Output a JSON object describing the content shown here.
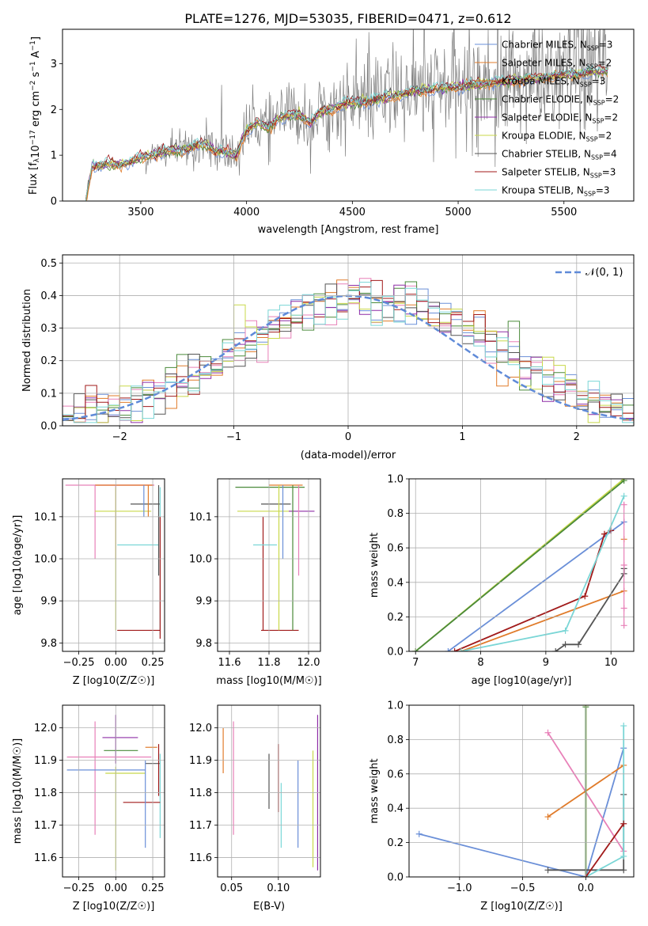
{
  "title": "PLATE=1276, MJD=53035, FIBERID=0471, z=0.612",
  "colors": {
    "Chabrier MILES": "#6a8fd8",
    "Salpeter MILES": "#e07b2a",
    "Kroupa MILES": "#e07b2a",
    "Chabrier ELODIE": "#4a8a3a",
    "Salpeter ELODIE": "#8e2da6",
    "Kroupa ELODIE": "#c8d84a",
    "Chabrier STELIB": "#555555",
    "Salpeter STELIB": "#a11a1a",
    "Kroupa STELIB": "#7ad6d6",
    "pink": "#e880b8",
    "gaussian": "#5f8ad8",
    "spectrum": "#7f7f7f"
  },
  "chart_data": [
    {
      "id": "spectrum",
      "type": "line",
      "xlabel": "wavelength [Angstrom, rest frame]",
      "ylabel": "Flux [f_λ10^-17 erg cm^-2 s^-1 A^-1]",
      "xlim": [
        3130,
        5830
      ],
      "ylim": [
        0,
        3.75
      ],
      "xticks": [
        3500,
        4000,
        4500,
        5000,
        5500
      ],
      "yticks": [
        0,
        1,
        2,
        3
      ],
      "legend_position": "top-right",
      "legend": [
        {
          "label": "Chabrier MILES",
          "nssp": "3",
          "color": "#6a8fd8"
        },
        {
          "label": "Salpeter MILES",
          "nssp": "2",
          "color": "#e07b2a"
        },
        {
          "label": "Kroupa MILES",
          "nssp": "3",
          "color": "#e07b2a"
        },
        {
          "label": "Chabrier ELODIE",
          "nssp": "2",
          "color": "#4a8a3a"
        },
        {
          "label": "Salpeter ELODIE",
          "nssp": "2",
          "color": "#8e2da6"
        },
        {
          "label": "Kroupa ELODIE",
          "nssp": "2",
          "color": "#c8d84a"
        },
        {
          "label": "Chabrier STELIB",
          "nssp": "4",
          "color": "#555555"
        },
        {
          "label": "Salpeter STELIB",
          "nssp": "3",
          "color": "#a11a1a"
        },
        {
          "label": "Kroupa STELIB",
          "nssp": "3",
          "color": "#7ad6d6"
        }
      ],
      "continuum": [
        [
          3240,
          0
        ],
        [
          3270,
          0.78
        ],
        [
          3300,
          0.75
        ],
        [
          3350,
          0.82
        ],
        [
          3400,
          0.8
        ],
        [
          3450,
          0.85
        ],
        [
          3500,
          0.95
        ],
        [
          3550,
          1.0
        ],
        [
          3600,
          1.05
        ],
        [
          3650,
          1.1
        ],
        [
          3700,
          1.12
        ],
        [
          3750,
          1.18
        ],
        [
          3800,
          1.25
        ],
        [
          3850,
          1.1
        ],
        [
          3900,
          1.05
        ],
        [
          3950,
          1.0
        ],
        [
          4000,
          1.55
        ],
        [
          4050,
          1.7
        ],
        [
          4100,
          1.6
        ],
        [
          4150,
          1.8
        ],
        [
          4200,
          1.85
        ],
        [
          4250,
          1.9
        ],
        [
          4300,
          1.7
        ],
        [
          4350,
          1.95
        ],
        [
          4400,
          2.0
        ],
        [
          4450,
          2.1
        ],
        [
          4500,
          2.15
        ],
        [
          4600,
          2.2
        ],
        [
          4700,
          2.3
        ],
        [
          4800,
          2.4
        ],
        [
          4900,
          2.45
        ],
        [
          5000,
          2.5
        ],
        [
          5100,
          2.55
        ],
        [
          5200,
          2.6
        ],
        [
          5300,
          2.65
        ],
        [
          5400,
          2.7
        ],
        [
          5500,
          2.75
        ],
        [
          5600,
          2.8
        ],
        [
          5700,
          2.85
        ]
      ],
      "noise_start": 3520
    },
    {
      "id": "residuals",
      "type": "line",
      "xlabel": "(data-model)/error",
      "ylabel": "Normed distribution",
      "xlim": [
        -2.5,
        2.5
      ],
      "ylim": [
        0,
        0.525
      ],
      "xticks": [
        -2,
        -1,
        0,
        1,
        2
      ],
      "yticks": [
        0.0,
        0.1,
        0.2,
        0.3,
        0.4,
        0.5
      ],
      "legend_position": "top-right",
      "legend_label": "𝒩(0, 1)",
      "bin_width": 0.1
    },
    {
      "id": "age-vs-Z",
      "type": "scatter",
      "xlabel": "Z [log10(Z/Z☉)]",
      "ylabel": "age [log10(age/yr)]",
      "xlim": [
        -0.36,
        0.33
      ],
      "ylim": [
        9.78,
        10.19
      ],
      "xticks": [
        -0.25,
        0.0,
        0.25
      ],
      "xticklabels": [
        "−0.25",
        "0.00",
        "0.25"
      ],
      "yticks": [
        9.8,
        9.9,
        10.0,
        10.1
      ],
      "points": [
        {
          "x": 0.1,
          "xlo": -0.34,
          "xhi": 0.26,
          "y": 10.175,
          "color": "#e880b8"
        },
        {
          "x": 0.0,
          "xlo": -0.14,
          "xhi": 0.26,
          "y": 10.175,
          "ylo": 10.0,
          "yhi": 10.175,
          "color": "#e880b8"
        },
        {
          "x": 0.0,
          "xlo": -0.14,
          "xhi": 0.25,
          "y": 10.175,
          "color": "#e07b2a"
        },
        {
          "x": -0.14,
          "y": 10.175,
          "ylo": 10.0,
          "yhi": 10.175,
          "color": "#e880b8"
        },
        {
          "x": 0.0,
          "y": 10.17,
          "ylo": 9.83,
          "yhi": 10.17,
          "color": "#c8d84a"
        },
        {
          "x": 0.03,
          "xlo": -0.14,
          "xhi": 0.24,
          "y": 10.113,
          "color": "#c8d84a"
        },
        {
          "x": 0.22,
          "xlo": 0.1,
          "xhi": 0.3,
          "y": 10.13,
          "color": "#555555"
        },
        {
          "x": 0.19,
          "y": 10.12,
          "ylo": 10.1,
          "yhi": 10.175,
          "color": "#6a8fd8"
        },
        {
          "x": 0.22,
          "y": 10.115,
          "ylo": 10.1,
          "yhi": 10.175,
          "color": "#e07b2a"
        },
        {
          "x": 0.1,
          "xlo": 0.01,
          "xhi": 0.29,
          "y": 10.033,
          "color": "#7ad6d6"
        },
        {
          "x": 0.29,
          "y": 10.02,
          "ylo": 9.96,
          "yhi": 10.175,
          "color": "#555555"
        },
        {
          "x": 0.3,
          "y": 10.0,
          "ylo": 9.82,
          "yhi": 10.17,
          "color": "#7ad6d6"
        },
        {
          "x": 0.3,
          "y": 10.0,
          "ylo": 9.81,
          "yhi": 10.1,
          "color": "#a11a1a"
        },
        {
          "x": 0.18,
          "xlo": 0.01,
          "xhi": 0.3,
          "y": 9.83,
          "color": "#a11a1a"
        }
      ]
    },
    {
      "id": "age-vs-mass",
      "type": "scatter",
      "xlabel": "mass [log10(M/M☉)]",
      "ylabel": "",
      "xlim": [
        11.54,
        12.06
      ],
      "ylim": [
        9.78,
        10.19
      ],
      "xticks": [
        11.6,
        11.8,
        12.0
      ],
      "xticklabels": [
        "11.6",
        "11.8",
        "12.0"
      ],
      "yticks": [
        9.8,
        9.9,
        10.0,
        10.1
      ],
      "points": [
        {
          "x": 11.9,
          "xlo": 11.63,
          "xhi": 11.98,
          "y": 10.17,
          "color": "#4a8a3a"
        },
        {
          "x": 11.93,
          "xlo": 11.8,
          "xhi": 11.97,
          "y": 10.175,
          "color": "#e07b2a"
        },
        {
          "x": 11.9,
          "xlo": 11.64,
          "xhi": 11.93,
          "y": 10.113,
          "color": "#c8d84a"
        },
        {
          "x": 11.97,
          "xlo": 11.9,
          "xhi": 12.03,
          "y": 10.113,
          "color": "#8e2da6"
        },
        {
          "x": 11.84,
          "xlo": 11.76,
          "xhi": 11.91,
          "y": 10.13,
          "color": "#555555"
        },
        {
          "x": 11.87,
          "y": 10.12,
          "ylo": 10.0,
          "yhi": 10.175,
          "color": "#6a8fd8"
        },
        {
          "x": 11.77,
          "y": 10.1,
          "ylo": 9.83,
          "yhi": 10.1,
          "color": "#a11a1a"
        },
        {
          "x": 11.78,
          "xlo": 11.72,
          "xhi": 11.84,
          "y": 10.033,
          "color": "#7ad6d6"
        },
        {
          "x": 11.84,
          "xlo": 11.76,
          "xhi": 11.95,
          "y": 9.83,
          "color": "#a11a1a"
        },
        {
          "x": 11.92,
          "y": 9.97,
          "ylo": 9.83,
          "yhi": 10.175,
          "color": "#4a8a3a"
        },
        {
          "x": 11.85,
          "y": 10.0,
          "ylo": 9.83,
          "yhi": 10.175,
          "color": "#c8d84a"
        },
        {
          "x": 11.95,
          "y": 10.05,
          "ylo": 9.96,
          "yhi": 10.175,
          "color": "#e880b8"
        }
      ]
    },
    {
      "id": "mass-weight-vs-age",
      "type": "line",
      "xlabel": "age [log10(age/yr)]",
      "ylabel": "mass weight",
      "xlim": [
        6.9,
        10.35
      ],
      "ylim": [
        0,
        1
      ],
      "xticks": [
        7,
        8,
        9,
        10
      ],
      "yticks": [
        0.0,
        0.2,
        0.4,
        0.6,
        0.8,
        1.0
      ],
      "series": [
        {
          "color": "#c8d84a",
          "points": [
            [
              7.0,
              0.0
            ],
            [
              10.2,
              1.0
            ]
          ]
        },
        {
          "color": "#4a8a3a",
          "points": [
            [
              7.0,
              0.0
            ],
            [
              10.2,
              0.99
            ]
          ]
        },
        {
          "color": "#6a8fd8",
          "points": [
            [
              7.5,
              0.0
            ],
            [
              10.2,
              0.75
            ]
          ]
        },
        {
          "color": "#a11a1a",
          "points": [
            [
              7.6,
              0.0
            ],
            [
              9.6,
              0.32
            ],
            [
              9.9,
              0.68
            ],
            [
              10.0,
              0.7
            ]
          ]
        },
        {
          "color": "#e07b2a",
          "points": [
            [
              7.7,
              0.0
            ],
            [
              10.2,
              0.35
            ]
          ]
        },
        {
          "color": "#7ad6d6",
          "points": [
            [
              7.7,
              0.0
            ],
            [
              9.3,
              0.12
            ],
            [
              10.2,
              0.9
            ]
          ]
        },
        {
          "color": "#555555",
          "points": [
            [
              9.15,
              0.0
            ],
            [
              9.3,
              0.04
            ],
            [
              9.5,
              0.04
            ],
            [
              10.2,
              0.45
            ],
            [
              10.2,
              0.48
            ]
          ]
        }
      ],
      "markers": [
        {
          "x": 10.2,
          "y": 0.85,
          "color": "#e880b8"
        },
        {
          "x": 10.2,
          "y": 0.65,
          "color": "#e07b2a"
        },
        {
          "x": 10.2,
          "y": 0.5,
          "color": "#e880b8"
        },
        {
          "x": 10.2,
          "y": 0.25,
          "color": "#e880b8"
        },
        {
          "x": 10.2,
          "y": 0.15,
          "color": "#e880b8"
        }
      ]
    },
    {
      "id": "mass-vs-Z",
      "type": "scatter",
      "xlabel": "Z [log10(Z/Z☉)]",
      "ylabel": "mass [log10(M/M☉)]",
      "xlim": [
        -0.36,
        0.33
      ],
      "ylim": [
        11.54,
        12.07
      ],
      "xticks": [
        -0.25,
        0.0,
        0.25
      ],
      "xticklabels": [
        "−0.25",
        "0.00",
        "0.25"
      ],
      "yticks": [
        11.6,
        11.7,
        11.8,
        11.9,
        12.0
      ],
      "points": [
        {
          "x": 0.0,
          "y": 11.97,
          "xlo": -0.09,
          "xhi": 0.15,
          "ylo": 11.89,
          "yhi": 12.04,
          "color": "#8e2da6"
        },
        {
          "x": -0.14,
          "y": 11.91,
          "xlo": -0.33,
          "xhi": 0.24,
          "ylo": 11.67,
          "yhi": 12.02,
          "color": "#e880b8"
        },
        {
          "x": 0.08,
          "y": 11.93,
          "xlo": -0.08,
          "xhi": 0.15,
          "color": "#4a8a3a"
        },
        {
          "x": 0.1,
          "y": 11.87,
          "xlo": -0.33,
          "xhi": 0.2,
          "color": "#6a8fd8"
        },
        {
          "x": 0.0,
          "y": 11.86,
          "xlo": -0.07,
          "xhi": 0.2,
          "ylo": 11.56,
          "yhi": 11.88,
          "color": "#c8d84a"
        },
        {
          "x": 0.25,
          "y": 11.94,
          "xlo": 0.2,
          "xhi": 0.28,
          "color": "#e07b2a"
        },
        {
          "x": 0.25,
          "y": 11.89,
          "xlo": 0.2,
          "xhi": 0.3,
          "color": "#555555"
        },
        {
          "x": 0.29,
          "y": 11.88,
          "ylo": 11.79,
          "yhi": 11.95,
          "color": "#a11a1a"
        },
        {
          "x": 0.3,
          "y": 11.78,
          "ylo": 11.66,
          "yhi": 11.92,
          "color": "#7ad6d6"
        },
        {
          "x": 0.2,
          "y": 11.77,
          "xlo": 0.05,
          "xhi": 0.3,
          "color": "#a11a1a"
        },
        {
          "x": 0.2,
          "y": 11.77,
          "ylo": 11.63,
          "yhi": 11.9,
          "color": "#6a8fd8"
        }
      ]
    },
    {
      "id": "mass-vs-EBV",
      "type": "scatter",
      "xlabel": "E(B-V)",
      "ylabel": "",
      "xlim": [
        0.035,
        0.145
      ],
      "ylim": [
        11.54,
        12.07
      ],
      "xticks": [
        0.05,
        0.1
      ],
      "xticklabels": [
        "0.05",
        "0.10"
      ],
      "yticks": [
        11.6,
        11.7,
        11.8,
        11.9,
        12.0
      ],
      "points": [
        {
          "x": 0.041,
          "y": 11.93,
          "ylo": 11.86,
          "yhi": 12.0,
          "color": "#e07b2a"
        },
        {
          "x": 0.052,
          "y": 11.85,
          "ylo": 11.67,
          "yhi": 12.02,
          "color": "#e880b8"
        },
        {
          "x": 0.09,
          "y": 11.83,
          "ylo": 11.75,
          "yhi": 11.92,
          "color": "#555555"
        },
        {
          "x": 0.1,
          "y": 11.85,
          "ylo": 11.74,
          "yhi": 11.95,
          "color": "#a11a1a"
        },
        {
          "x": 0.103,
          "y": 11.75,
          "ylo": 11.63,
          "yhi": 11.83,
          "color": "#7ad6d6"
        },
        {
          "x": 0.121,
          "y": 11.77,
          "ylo": 11.63,
          "yhi": 11.9,
          "color": "#6a8fd8"
        },
        {
          "x": 0.137,
          "y": 11.75,
          "ylo": 11.57,
          "yhi": 11.93,
          "color": "#c8d84a"
        },
        {
          "x": 0.142,
          "y": 11.85,
          "ylo": 11.56,
          "yhi": 12.04,
          "color": "#8e2da6"
        }
      ]
    },
    {
      "id": "mass-weight-vs-Z",
      "type": "line",
      "xlabel": "Z [log10(Z/Z☉)]",
      "ylabel": "mass weight",
      "xlim": [
        -1.4,
        0.38
      ],
      "ylim": [
        0,
        1
      ],
      "xticks": [
        -1.0,
        -0.5,
        0.0
      ],
      "xticklabels": [
        "−1.0",
        "−0.5",
        "0.0"
      ],
      "yticks": [
        0.0,
        0.2,
        0.4,
        0.6,
        0.8,
        1.0
      ],
      "series": [
        {
          "color": "#6a8fd8",
          "points": [
            [
              -1.32,
              0.25
            ],
            [
              0.0,
              0.0
            ],
            [
              0.3,
              0.75
            ]
          ]
        },
        {
          "color": "#e880b8",
          "points": [
            [
              -0.3,
              0.84
            ],
            [
              0.3,
              0.15
            ]
          ]
        },
        {
          "color": "#e07b2a",
          "points": [
            [
              -0.3,
              0.35
            ],
            [
              0.3,
              0.65
            ]
          ]
        },
        {
          "color": "#c8d84a",
          "points": [
            [
              0.0,
              0.0
            ],
            [
              0.0,
              1.0
            ]
          ]
        },
        {
          "color": "#4a8a3a",
          "points": [
            [
              0.0,
              0.0
            ],
            [
              0.0,
              0.99
            ]
          ]
        },
        {
          "color": "#555555",
          "points": [
            [
              -0.3,
              0.04
            ],
            [
              0.3,
              0.04
            ],
            [
              0.3,
              0.48
            ]
          ]
        },
        {
          "color": "#7ad6d6",
          "points": [
            [
              0.0,
              0.0
            ],
            [
              0.3,
              0.12
            ],
            [
              0.3,
              0.88
            ]
          ]
        },
        {
          "color": "#a11a1a",
          "points": [
            [
              0.0,
              0.0
            ],
            [
              0.3,
              0.31
            ]
          ]
        }
      ]
    }
  ]
}
